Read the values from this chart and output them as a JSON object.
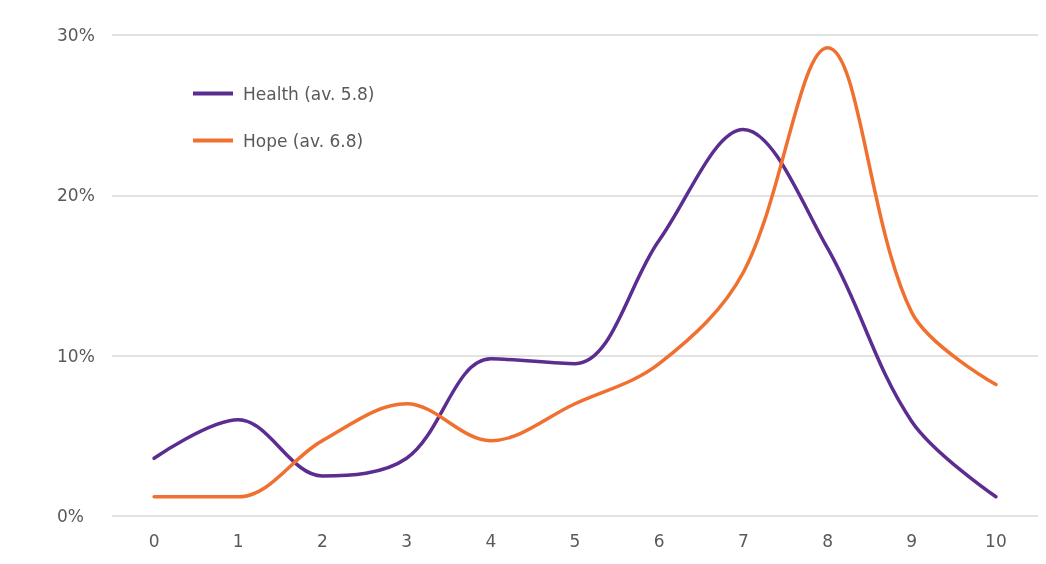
{
  "chart_data": {
    "type": "line",
    "categories": [
      "0",
      "1",
      "2",
      "3",
      "4",
      "5",
      "6",
      "7",
      "8",
      "9",
      "10"
    ],
    "series": [
      {
        "name": "Health (av. 5.8)",
        "color": "#5c2d91",
        "values": [
          3.6,
          6.0,
          2.5,
          3.6,
          9.8,
          9.5,
          17.2,
          24.1,
          16.7,
          5.9,
          1.2
        ]
      },
      {
        "name": "Hope (av. 6.8)",
        "color": "#f07030",
        "values": [
          1.2,
          1.2,
          4.7,
          7.0,
          4.7,
          7.0,
          9.5,
          15.2,
          29.2,
          12.7,
          8.2
        ]
      }
    ],
    "ylim": [
      0,
      30
    ],
    "yticks": [
      {
        "value": 0,
        "label": "0%"
      },
      {
        "value": 10,
        "label": "10%"
      },
      {
        "value": 20,
        "label": "20%"
      },
      {
        "value": 30,
        "label": "30%"
      }
    ],
    "grid": "y",
    "legend": "top left",
    "marker": "none",
    "line_style": "solid"
  }
}
